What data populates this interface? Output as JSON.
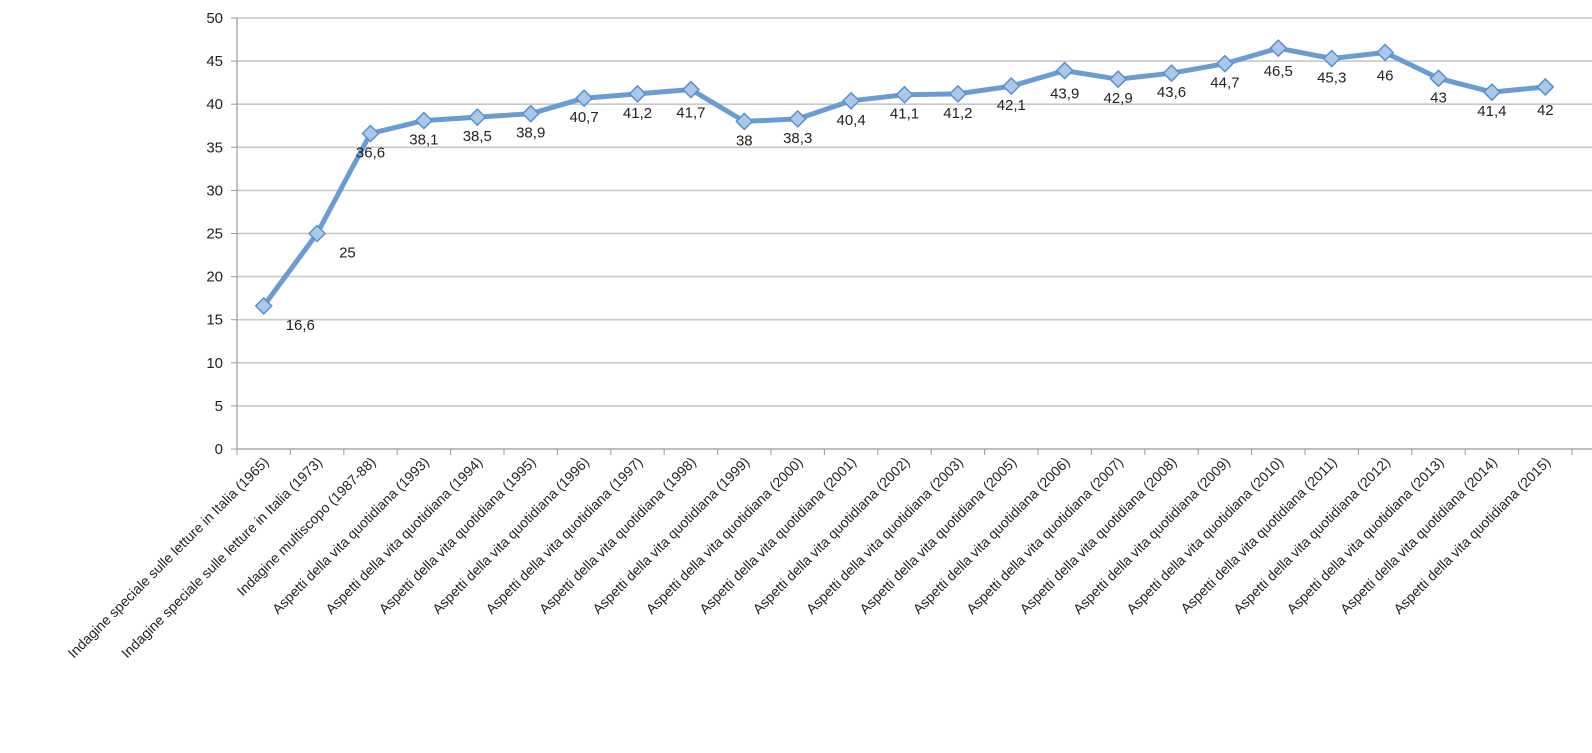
{
  "chart_data": {
    "type": "line",
    "title": "",
    "xlabel": "",
    "ylabel": "",
    "ylim": [
      0,
      50
    ],
    "yticks": [
      "0",
      "5",
      "10",
      "15",
      "20",
      "25",
      "30",
      "35",
      "40",
      "45",
      "50"
    ],
    "grid": "horizontal",
    "legend": "none",
    "categories": [
      "Indagine speciale sulle letture in Italia (1965)",
      "Indagine speciale sulle letture in Italia (1973)",
      "Indagine multiscopo (1987-88)",
      "Aspetti della vita quotidiana (1993)",
      "Aspetti della vita quotidiana (1994)",
      "Aspetti della vita quotidiana (1995)",
      "Aspetti della vita quotidiana (1996)",
      "Aspetti della vita quotidiana (1997)",
      "Aspetti della vita quotidiana (1998)",
      "Aspetti della vita quotidiana (1999)",
      "Aspetti della vita quotidiana (2000)",
      "Aspetti della vita quotidiana (2001)",
      "Aspetti della vita quotidiana (2002)",
      "Aspetti della vita quotidiana (2003)",
      "Aspetti della vita quotidiana (2005)",
      "Aspetti della vita quotidiana (2006)",
      "Aspetti della vita quotidiana (2007)",
      "Aspetti della vita quotidiana (2008)",
      "Aspetti della vita quotidiana (2009)",
      "Aspetti della vita quotidiana (2010)",
      "Aspetti della vita quotidiana (2011)",
      "Aspetti della vita quotidiana (2012)",
      "Aspetti della vita quotidiana (2013)",
      "Aspetti della vita quotidiana (2014)",
      "Aspetti della vita quotidiana (2015)"
    ],
    "values": [
      16.6,
      25,
      36.6,
      38.1,
      38.5,
      38.9,
      40.7,
      41.2,
      41.7,
      38,
      38.3,
      40.4,
      41.1,
      41.2,
      42.1,
      43.9,
      42.9,
      43.6,
      44.7,
      46.5,
      45.3,
      46,
      43,
      41.4,
      42
    ],
    "data_labels": [
      "16,6",
      "25",
      "36,6",
      "38,1",
      "38,5",
      "38,9",
      "40,7",
      "41,2",
      "41,7",
      "38",
      "38,3",
      "40,4",
      "41,1",
      "41,2",
      "42,1",
      "43,9",
      "42,9",
      "43,6",
      "44,7",
      "46,5",
      "45,3",
      "46",
      "43",
      "41,4",
      "42"
    ],
    "line_color": "#6a9cd4",
    "marker_fill": "#a9c8ec",
    "marker_stroke": "#5b8fcb",
    "grid_color": "#c8c8c8"
  }
}
